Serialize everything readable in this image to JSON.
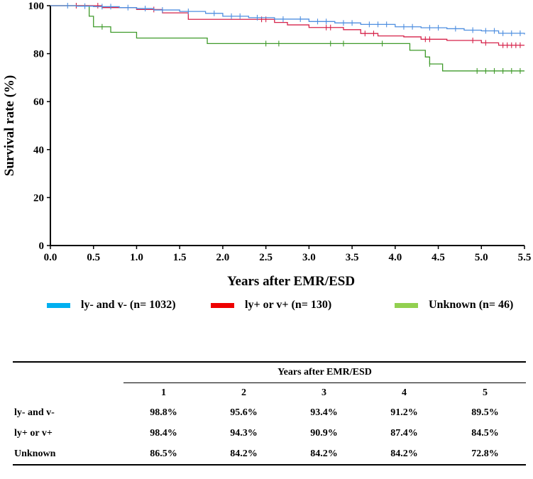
{
  "chart_data": {
    "type": "line",
    "subtype": "kaplan-meier",
    "xlabel": "Years after EMR/ESD",
    "ylabel": "Survival rate (%)",
    "xlim": [
      0,
      5.5
    ],
    "ylim": [
      0,
      100
    ],
    "x_ticks": [
      "0.0",
      "0.5",
      "1.0",
      "1.5",
      "2.0",
      "2.5",
      "3.0",
      "3.5",
      "4.0",
      "4.5",
      "5.0",
      "5.5"
    ],
    "y_ticks": [
      "0",
      "20",
      "40",
      "60",
      "80",
      "100"
    ],
    "series": [
      {
        "name": "ly- and v- (n= 1032)",
        "color": "#4f8fe0",
        "legend_color": "#00b0f0",
        "steps": [
          [
            0,
            100
          ],
          [
            0.3,
            99.8
          ],
          [
            0.5,
            99.6
          ],
          [
            0.8,
            99.2
          ],
          [
            1.0,
            98.8
          ],
          [
            1.2,
            98.2
          ],
          [
            1.5,
            97.6
          ],
          [
            1.8,
            96.8
          ],
          [
            2.0,
            95.6
          ],
          [
            2.3,
            95.0
          ],
          [
            2.6,
            94.4
          ],
          [
            3.0,
            93.4
          ],
          [
            3.3,
            92.8
          ],
          [
            3.6,
            92.2
          ],
          [
            4.0,
            91.2
          ],
          [
            4.3,
            90.8
          ],
          [
            4.6,
            90.4
          ],
          [
            4.8,
            89.8
          ],
          [
            5.0,
            89.5
          ],
          [
            5.2,
            88.5
          ],
          [
            5.5,
            88.0
          ]
        ],
        "censors": [
          0.2,
          0.4,
          0.6,
          0.7,
          0.9,
          1.1,
          1.3,
          1.6,
          1.9,
          2.1,
          2.2,
          2.4,
          2.7,
          2.9,
          3.1,
          3.2,
          3.4,
          3.5,
          3.7,
          3.8,
          3.9,
          4.1,
          4.2,
          4.4,
          4.5,
          4.7,
          4.9,
          5.05,
          5.15,
          5.25,
          5.35,
          5.45
        ]
      },
      {
        "name": "ly+ or v+ (n= 130)",
        "color": "#d6234a",
        "legend_color": "#ee0000",
        "steps": [
          [
            0,
            100
          ],
          [
            0.6,
            99.2
          ],
          [
            1.0,
            98.4
          ],
          [
            1.3,
            97.0
          ],
          [
            1.6,
            94.3
          ],
          [
            2.0,
            94.3
          ],
          [
            2.6,
            93.0
          ],
          [
            2.75,
            92.0
          ],
          [
            3.0,
            90.9
          ],
          [
            3.4,
            90.0
          ],
          [
            3.6,
            88.4
          ],
          [
            3.8,
            87.4
          ],
          [
            4.1,
            87.0
          ],
          [
            4.3,
            86.0
          ],
          [
            4.6,
            85.5
          ],
          [
            5.0,
            84.5
          ],
          [
            5.2,
            83.5
          ],
          [
            5.5,
            83.5
          ]
        ],
        "censors": [
          0.3,
          0.55,
          1.2,
          2.45,
          2.5,
          3.2,
          3.25,
          3.65,
          3.75,
          4.35,
          4.4,
          4.9,
          5.05,
          5.25,
          5.3,
          5.35,
          5.4,
          5.45
        ]
      },
      {
        "name": "Unknown (n= 46)",
        "color": "#3f9a2a",
        "legend_color": "#92d050",
        "steps": [
          [
            0,
            100
          ],
          [
            0.45,
            95.6
          ],
          [
            0.5,
            91.2
          ],
          [
            0.7,
            88.9
          ],
          [
            1.0,
            86.5
          ],
          [
            1.82,
            84.2
          ],
          [
            4.17,
            81.4
          ],
          [
            4.35,
            78.6
          ],
          [
            4.4,
            75.7
          ],
          [
            4.55,
            72.8
          ],
          [
            5.5,
            72.8
          ]
        ],
        "censors": [
          0.6,
          2.5,
          2.65,
          3.25,
          3.4,
          3.85,
          4.4,
          4.95,
          5.05,
          5.15,
          5.25,
          5.35,
          5.45
        ]
      }
    ]
  },
  "table": {
    "group_header": "Years after EMR/ESD",
    "year_headers": [
      "1",
      "2",
      "3",
      "4",
      "5"
    ],
    "rows": [
      {
        "label": "ly- and v-",
        "values": [
          "98.8%",
          "95.6%",
          "93.4%",
          "91.2%",
          "89.5%"
        ]
      },
      {
        "label": "ly+ or v+",
        "values": [
          "98.4%",
          "94.3%",
          "90.9%",
          "87.4%",
          "84.5%"
        ]
      },
      {
        "label": "Unknown",
        "values": [
          "86.5%",
          "84.2%",
          "84.2%",
          "84.2%",
          "72.8%"
        ]
      }
    ]
  }
}
